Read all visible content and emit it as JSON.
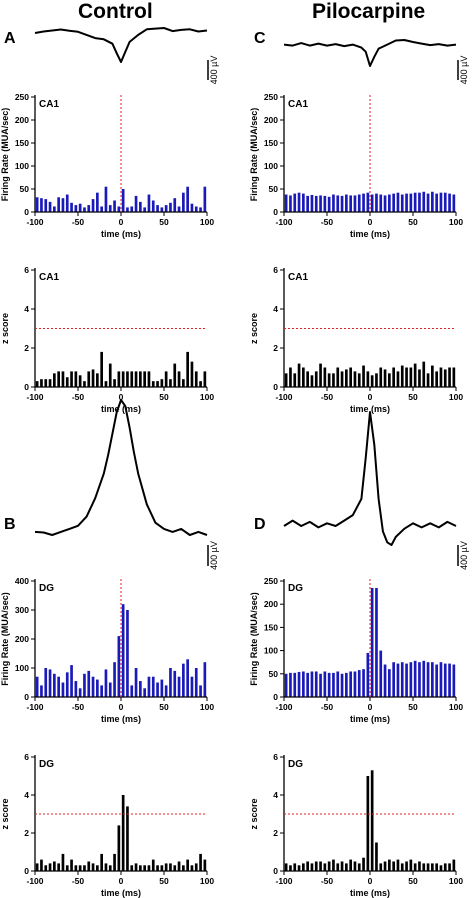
{
  "columns": [
    {
      "title": "Control",
      "panels": [
        "A",
        "B"
      ]
    },
    {
      "title": "Pilocarpine",
      "panels": [
        "C",
        "D"
      ]
    }
  ],
  "colors": {
    "mua": "#1a1ab8",
    "zscore": "#000000",
    "event_line": "#e02020",
    "threshold": "#e02020",
    "axis": "#000000"
  },
  "chart_data": [
    {
      "type": "line",
      "id": "lfp-control-ca1",
      "panel": "A",
      "x": [
        -100,
        -90,
        -80,
        -70,
        -60,
        -50,
        -40,
        -30,
        -20,
        -10,
        -5,
        0,
        5,
        10,
        20,
        30,
        40,
        50,
        60,
        70,
        80,
        90,
        100
      ],
      "y": [
        0,
        12,
        20,
        28,
        18,
        10,
        -15,
        -40,
        -50,
        -85,
        -160,
        -230,
        -150,
        -70,
        -15,
        30,
        35,
        40,
        15,
        25,
        30,
        12,
        20
      ],
      "scale_bar_label": "400 µV"
    },
    {
      "type": "bar",
      "id": "mua-control-ca1",
      "label": "CA1",
      "ylabel": "Firing Rate (MUA/sec)",
      "xlabel": "time (ms)",
      "xlim": [
        -100,
        100
      ],
      "ylim": [
        0,
        250
      ],
      "yticks": [
        0,
        50,
        100,
        150,
        200,
        250
      ],
      "xticks": [
        -100,
        -50,
        0,
        50,
        100
      ],
      "bin_width": 5,
      "x": [
        -97.5,
        -92.5,
        -87.5,
        -82.5,
        -77.5,
        -72.5,
        -67.5,
        -62.5,
        -57.5,
        -52.5,
        -47.5,
        -42.5,
        -37.5,
        -32.5,
        -27.5,
        -22.5,
        -17.5,
        -12.5,
        -7.5,
        -2.5,
        2.5,
        7.5,
        12.5,
        17.5,
        22.5,
        27.5,
        32.5,
        37.5,
        42.5,
        47.5,
        52.5,
        57.5,
        62.5,
        67.5,
        72.5,
        77.5,
        82.5,
        87.5,
        92.5,
        97.5
      ],
      "values": [
        32,
        30,
        28,
        22,
        12,
        32,
        30,
        38,
        20,
        15,
        18,
        10,
        15,
        28,
        42,
        12,
        55,
        15,
        25,
        12,
        50,
        10,
        12,
        35,
        22,
        10,
        38,
        25,
        15,
        10,
        15,
        20,
        30,
        12,
        42,
        55,
        18,
        12,
        10,
        55
      ],
      "event_line_x": 0
    },
    {
      "type": "bar",
      "id": "z-control-ca1",
      "label": "CA1",
      "ylabel": "z score",
      "xlabel": "time (ms)",
      "xlim": [
        -100,
        100
      ],
      "ylim": [
        0,
        6
      ],
      "yticks": [
        0,
        2,
        4,
        6
      ],
      "xticks": [
        -100,
        -50,
        0,
        50,
        100
      ],
      "bin_width": 5,
      "threshold": 3,
      "x": [
        -97.5,
        -92.5,
        -87.5,
        -82.5,
        -77.5,
        -72.5,
        -67.5,
        -62.5,
        -57.5,
        -52.5,
        -47.5,
        -42.5,
        -37.5,
        -32.5,
        -27.5,
        -22.5,
        -17.5,
        -12.5,
        -7.5,
        -2.5,
        2.5,
        7.5,
        12.5,
        17.5,
        22.5,
        27.5,
        32.5,
        37.5,
        42.5,
        47.5,
        52.5,
        57.5,
        62.5,
        67.5,
        72.5,
        77.5,
        82.5,
        87.5,
        92.5,
        97.5
      ],
      "values": [
        0.3,
        0.4,
        0.4,
        0.4,
        0.7,
        0.8,
        0.8,
        0.5,
        0.8,
        0.8,
        0.6,
        0.3,
        0.8,
        0.9,
        0.7,
        1.8,
        0.3,
        1.2,
        0.4,
        0.8,
        0.8,
        0.8,
        0.8,
        0.8,
        0.8,
        0.8,
        0.8,
        0.3,
        0.3,
        0.4,
        0.8,
        0.4,
        1.2,
        0.8,
        0.4,
        1.8,
        1.3,
        0.8,
        0.3,
        0.8
      ]
    },
    {
      "type": "line",
      "id": "lfp-pilo-ca1",
      "panel": "C",
      "x": [
        -100,
        -90,
        -80,
        -70,
        -60,
        -50,
        -40,
        -30,
        -20,
        -10,
        -5,
        0,
        5,
        10,
        20,
        30,
        40,
        50,
        60,
        70,
        80,
        90,
        100
      ],
      "y": [
        10,
        0,
        25,
        0,
        20,
        0,
        15,
        -5,
        10,
        -20,
        -60,
        -200,
        -110,
        -30,
        10,
        50,
        55,
        35,
        20,
        5,
        15,
        0,
        10
      ],
      "scale_bar_label": "400 µV"
    },
    {
      "type": "bar",
      "id": "mua-pilo-ca1",
      "label": "CA1",
      "ylabel": "Firing Rate (MUA/sec)",
      "xlabel": "time (ms)",
      "xlim": [
        -100,
        100
      ],
      "ylim": [
        0,
        250
      ],
      "yticks": [
        0,
        50,
        100,
        150,
        200,
        250
      ],
      "xticks": [
        -100,
        -50,
        0,
        50,
        100
      ],
      "bin_width": 5,
      "x": [
        -97.5,
        -92.5,
        -87.5,
        -82.5,
        -77.5,
        -72.5,
        -67.5,
        -62.5,
        -57.5,
        -52.5,
        -47.5,
        -42.5,
        -37.5,
        -32.5,
        -27.5,
        -22.5,
        -17.5,
        -12.5,
        -7.5,
        -2.5,
        2.5,
        7.5,
        12.5,
        17.5,
        22.5,
        27.5,
        32.5,
        37.5,
        42.5,
        47.5,
        52.5,
        57.5,
        62.5,
        67.5,
        72.5,
        77.5,
        82.5,
        87.5,
        92.5,
        97.5
      ],
      "values": [
        38,
        36,
        40,
        42,
        40,
        35,
        37,
        35,
        36,
        35,
        33,
        38,
        36,
        35,
        38,
        36,
        36,
        38,
        40,
        42,
        38,
        40,
        38,
        36,
        38,
        40,
        42,
        38,
        40,
        40,
        42,
        42,
        44,
        40,
        44,
        40,
        42,
        42,
        40,
        38
      ],
      "event_line_x": 0
    },
    {
      "type": "bar",
      "id": "z-pilo-ca1",
      "label": "CA1",
      "ylabel": "z score",
      "xlabel": "time (ms)",
      "xlim": [
        -100,
        100
      ],
      "ylim": [
        0,
        6
      ],
      "yticks": [
        0,
        2,
        4,
        6
      ],
      "xticks": [
        -100,
        -50,
        0,
        50,
        100
      ],
      "bin_width": 5,
      "threshold": 3,
      "x": [
        -97.5,
        -92.5,
        -87.5,
        -82.5,
        -77.5,
        -72.5,
        -67.5,
        -62.5,
        -57.5,
        -52.5,
        -47.5,
        -42.5,
        -37.5,
        -32.5,
        -27.5,
        -22.5,
        -17.5,
        -12.5,
        -7.5,
        -2.5,
        2.5,
        7.5,
        12.5,
        17.5,
        22.5,
        27.5,
        32.5,
        37.5,
        42.5,
        47.5,
        52.5,
        57.5,
        62.5,
        67.5,
        72.5,
        77.5,
        82.5,
        87.5,
        92.5,
        97.5
      ],
      "values": [
        0.7,
        1.0,
        0.7,
        1.2,
        1.0,
        0.8,
        0.6,
        0.8,
        1.2,
        1.0,
        0.7,
        0.7,
        1.0,
        0.8,
        0.9,
        1.0,
        0.8,
        0.7,
        1.1,
        0.8,
        0.6,
        0.7,
        1.0,
        0.9,
        0.7,
        1.0,
        0.8,
        1.1,
        1.0,
        1.0,
        1.2,
        0.9,
        1.3,
        0.7,
        1.1,
        0.8,
        1.0,
        0.9,
        1.0,
        1.0
      ]
    },
    {
      "type": "line",
      "id": "lfp-control-dg",
      "panel": "B",
      "x": [
        -100,
        -90,
        -80,
        -70,
        -60,
        -50,
        -40,
        -30,
        -20,
        -15,
        -10,
        -5,
        0,
        5,
        10,
        15,
        20,
        30,
        40,
        50,
        60,
        70,
        80,
        90,
        100
      ],
      "y": [
        -10,
        -12,
        -20,
        -10,
        0,
        10,
        40,
        100,
        180,
        240,
        310,
        380,
        420,
        400,
        330,
        250,
        180,
        80,
        20,
        0,
        -10,
        0,
        -20,
        -10,
        -20
      ],
      "scale_bar_label": "400 µV"
    },
    {
      "type": "bar",
      "id": "mua-control-dg",
      "label": "DG",
      "ylabel": "Firing Rate (MUA/sec)",
      "xlabel": "time (ms)",
      "xlim": [
        -100,
        100
      ],
      "ylim": [
        0,
        400
      ],
      "yticks": [
        0,
        100,
        200,
        300,
        400
      ],
      "xticks": [
        -100,
        -50,
        0,
        50,
        100
      ],
      "bin_width": 5,
      "x": [
        -97.5,
        -92.5,
        -87.5,
        -82.5,
        -77.5,
        -72.5,
        -67.5,
        -62.5,
        -57.5,
        -52.5,
        -47.5,
        -42.5,
        -37.5,
        -32.5,
        -27.5,
        -22.5,
        -17.5,
        -12.5,
        -7.5,
        -2.5,
        2.5,
        7.5,
        12.5,
        17.5,
        22.5,
        27.5,
        32.5,
        37.5,
        42.5,
        47.5,
        52.5,
        57.5,
        62.5,
        67.5,
        72.5,
        77.5,
        82.5,
        87.5,
        92.5,
        97.5
      ],
      "values": [
        70,
        40,
        100,
        95,
        80,
        70,
        50,
        85,
        110,
        55,
        30,
        80,
        90,
        70,
        60,
        40,
        95,
        50,
        120,
        210,
        320,
        300,
        40,
        100,
        55,
        30,
        70,
        70,
        50,
        60,
        40,
        100,
        90,
        70,
        115,
        130,
        70,
        100,
        40,
        120
      ],
      "event_line_x": 0
    },
    {
      "type": "bar",
      "id": "z-control-dg",
      "label": "DG",
      "ylabel": "z score",
      "xlabel": "time (ms)",
      "xlim": [
        -100,
        100
      ],
      "ylim": [
        0,
        6
      ],
      "yticks": [
        0,
        2,
        4,
        6
      ],
      "xticks": [
        -100,
        -50,
        0,
        50,
        100
      ],
      "bin_width": 5,
      "threshold": 3,
      "x": [
        -97.5,
        -92.5,
        -87.5,
        -82.5,
        -77.5,
        -72.5,
        -67.5,
        -62.5,
        -57.5,
        -52.5,
        -47.5,
        -42.5,
        -37.5,
        -32.5,
        -27.5,
        -22.5,
        -17.5,
        -12.5,
        -7.5,
        -2.5,
        2.5,
        7.5,
        12.5,
        17.5,
        22.5,
        27.5,
        32.5,
        37.5,
        42.5,
        47.5,
        52.5,
        57.5,
        62.5,
        67.5,
        72.5,
        77.5,
        82.5,
        87.5,
        92.5,
        97.5
      ],
      "values": [
        0.4,
        0.6,
        0.3,
        0.4,
        0.5,
        0.4,
        0.9,
        0.3,
        0.6,
        0.3,
        0.3,
        0.3,
        0.5,
        0.4,
        0.3,
        0.9,
        0.4,
        0.3,
        0.9,
        2.4,
        4.0,
        3.4,
        0.3,
        0.4,
        0.3,
        0.3,
        0.3,
        0.6,
        0.3,
        0.3,
        0.4,
        0.4,
        0.3,
        0.5,
        0.3,
        0.6,
        0.3,
        0.4,
        0.9,
        0.6
      ]
    },
    {
      "type": "line",
      "id": "lfp-pilo-dg",
      "panel": "D",
      "x": [
        -100,
        -90,
        -80,
        -70,
        -60,
        -50,
        -40,
        -30,
        -20,
        -10,
        -5,
        0,
        5,
        10,
        15,
        20,
        25,
        30,
        40,
        50,
        60,
        70,
        80,
        90,
        100
      ],
      "y": [
        0,
        20,
        0,
        15,
        -5,
        10,
        0,
        20,
        40,
        100,
        250,
        420,
        300,
        100,
        -20,
        -60,
        -70,
        -40,
        -10,
        10,
        -5,
        10,
        -5,
        15,
        0
      ],
      "scale_bar_label": "400 µV"
    },
    {
      "type": "bar",
      "id": "mua-pilo-dg",
      "label": "DG",
      "ylabel": "Firing Rate (MUA/sec)",
      "xlabel": "time (ms)",
      "xlim": [
        -100,
        100
      ],
      "ylim": [
        0,
        250
      ],
      "yticks": [
        0,
        50,
        100,
        150,
        200,
        250
      ],
      "xticks": [
        -100,
        -50,
        0,
        50,
        100
      ],
      "bin_width": 5,
      "x": [
        -97.5,
        -92.5,
        -87.5,
        -82.5,
        -77.5,
        -72.5,
        -67.5,
        -62.5,
        -57.5,
        -52.5,
        -47.5,
        -42.5,
        -37.5,
        -32.5,
        -27.5,
        -22.5,
        -17.5,
        -12.5,
        -7.5,
        -2.5,
        2.5,
        7.5,
        12.5,
        17.5,
        22.5,
        27.5,
        32.5,
        37.5,
        42.5,
        47.5,
        52.5,
        57.5,
        62.5,
        67.5,
        72.5,
        77.5,
        82.5,
        87.5,
        92.5,
        97.5
      ],
      "values": [
        50,
        52,
        52,
        54,
        55,
        52,
        55,
        55,
        50,
        55,
        52,
        52,
        55,
        50,
        52,
        55,
        55,
        58,
        60,
        95,
        235,
        235,
        100,
        70,
        60,
        75,
        72,
        75,
        72,
        75,
        78,
        75,
        78,
        75,
        75,
        70,
        75,
        72,
        72,
        70
      ],
      "event_line_x": 0
    },
    {
      "type": "bar",
      "id": "z-pilo-dg",
      "label": "DG",
      "ylabel": "z score",
      "xlabel": "time (ms)",
      "xlim": [
        -100,
        100
      ],
      "ylim": [
        0,
        6
      ],
      "yticks": [
        0,
        2,
        4,
        6
      ],
      "xticks": [
        -100,
        -50,
        0,
        50,
        100
      ],
      "bin_width": 5,
      "threshold": 3,
      "x": [
        -97.5,
        -92.5,
        -87.5,
        -82.5,
        -77.5,
        -72.5,
        -67.5,
        -62.5,
        -57.5,
        -52.5,
        -47.5,
        -42.5,
        -37.5,
        -32.5,
        -27.5,
        -22.5,
        -17.5,
        -12.5,
        -7.5,
        -2.5,
        2.5,
        7.5,
        12.5,
        17.5,
        22.5,
        27.5,
        32.5,
        37.5,
        42.5,
        47.5,
        52.5,
        57.5,
        62.5,
        67.5,
        72.5,
        77.5,
        82.5,
        87.5,
        92.5,
        97.5
      ],
      "values": [
        0.4,
        0.3,
        0.4,
        0.3,
        0.4,
        0.5,
        0.4,
        0.5,
        0.5,
        0.4,
        0.5,
        0.6,
        0.4,
        0.5,
        0.4,
        0.6,
        0.5,
        0.4,
        0.7,
        5.0,
        5.3,
        1.5,
        0.4,
        0.5,
        0.6,
        0.5,
        0.6,
        0.4,
        0.5,
        0.6,
        0.4,
        0.5,
        0.4,
        0.4,
        0.4,
        0.4,
        0.3,
        0.4,
        0.4,
        0.6
      ]
    }
  ]
}
